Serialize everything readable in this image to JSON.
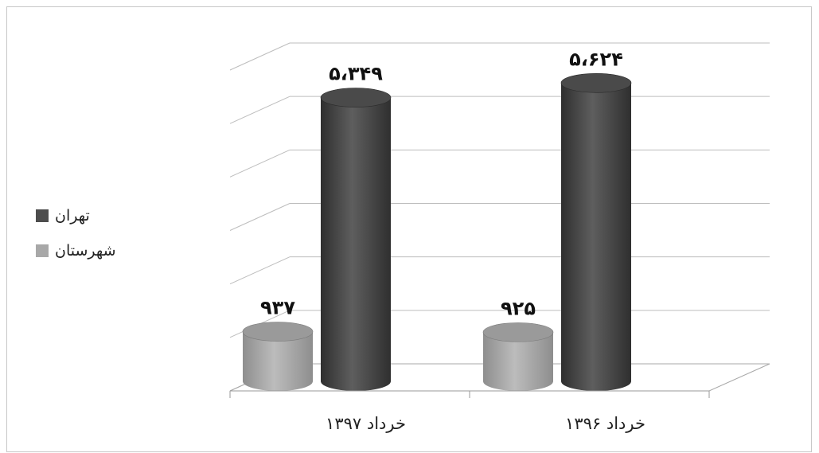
{
  "chart_data": {
    "type": "bar",
    "categories": [
      "خرداد ۱۳۹۷",
      "خرداد ۱۳۹۶"
    ],
    "series": [
      {
        "name": "تهران",
        "values": [
          5349,
          5624
        ],
        "labels": [
          "۵،۳۴۹",
          "۵،۶۲۴"
        ],
        "color": "#4d4d4d"
      },
      {
        "name": "شهرستان",
        "values": [
          937,
          925
        ],
        "labels": [
          "۹۳۷",
          "۹۲۵"
        ],
        "color": "#a8a8a8"
      }
    ],
    "ylim": [
      0,
      6000
    ],
    "grid": true,
    "legend": "left"
  }
}
